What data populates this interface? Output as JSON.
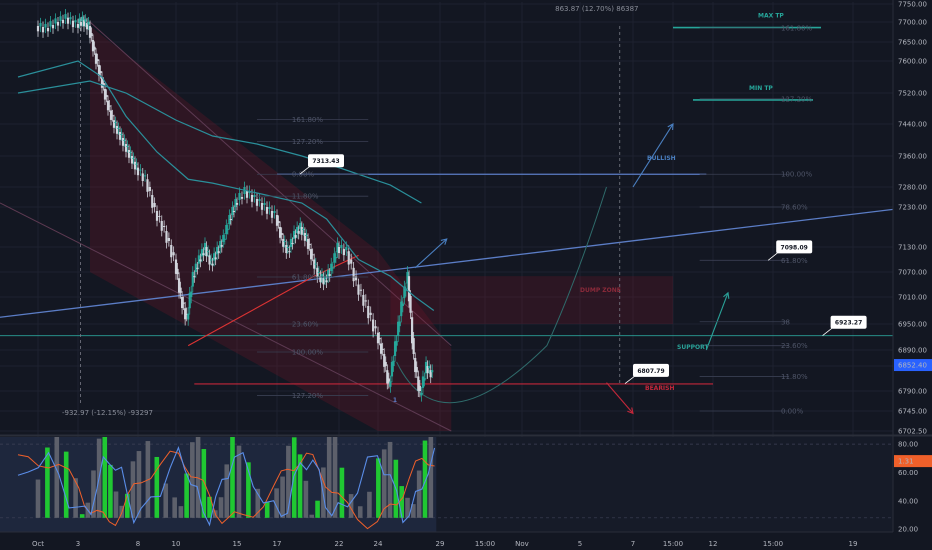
{
  "chart_data": {
    "type": "candlestick",
    "y_axis": {
      "min": 6702.5,
      "max": 7750,
      "ticks": [
        7750,
        7700,
        7650,
        7600,
        7520,
        7440,
        7360,
        7280,
        7230,
        7130,
        7070,
        7010,
        6950,
        6890,
        6850,
        6790,
        6745,
        6702.5
      ],
      "tick_labels": [
        "7750.00",
        "7700.00",
        "7650.00",
        "7600.00",
        "7520.00",
        "7440.00",
        "7360.00",
        "7280.00",
        "7230.00",
        "7130.00",
        "7070.00",
        "7010.00",
        "6950.00",
        "6890.00",
        "6850.00",
        "6790.00",
        "6745.00",
        "6702.50"
      ]
    },
    "x_axis": {
      "ticks": [
        {
          "label": "Oct",
          "day": 1
        },
        {
          "label": "3",
          "day": 3
        },
        {
          "label": "8",
          "day": 8
        },
        {
          "label": "10",
          "day": 10
        },
        {
          "label": "15",
          "day": 15
        },
        {
          "label": "17",
          "day": 17
        },
        {
          "label": "22",
          "day": 22
        },
        {
          "label": "24",
          "day": 24
        },
        {
          "label": "29",
          "day": 29
        },
        {
          "label": "15:00",
          "day": 31
        },
        {
          "label": "Nov",
          "day": 32.5
        },
        {
          "label": "5",
          "day": 36
        },
        {
          "label": "7",
          "day": 38
        },
        {
          "label": "15:00",
          "day": 40
        },
        {
          "label": "12",
          "day": 43
        },
        {
          "label": "15:00",
          "day": 45
        },
        {
          "label": "19",
          "day": 50
        }
      ]
    },
    "last_price": {
      "label": "6852.40",
      "value": 6852.4
    },
    "price_series": [
      [
        1,
        7690
      ],
      [
        1.5,
        7685
      ],
      [
        2,
        7700
      ],
      [
        2.5,
        7712
      ],
      [
        3,
        7695
      ],
      [
        3.5,
        7705
      ],
      [
        4,
        7690
      ],
      [
        4.5,
        7620
      ],
      [
        5,
        7560
      ],
      [
        5.5,
        7500
      ],
      [
        6,
        7450
      ],
      [
        6.5,
        7420
      ],
      [
        7,
        7390
      ],
      [
        7.5,
        7360
      ],
      [
        8,
        7330
      ],
      [
        8.5,
        7300
      ],
      [
        9,
        7220
      ],
      [
        9.5,
        7170
      ],
      [
        10,
        7100
      ],
      [
        10.5,
        7010
      ],
      [
        11,
        6960
      ],
      [
        11.5,
        7060
      ],
      [
        12,
        7100
      ],
      [
        12.5,
        7130
      ],
      [
        13,
        7090
      ],
      [
        13.5,
        7120
      ],
      [
        14,
        7150
      ],
      [
        14.5,
        7200
      ],
      [
        15,
        7240
      ],
      [
        15.5,
        7270
      ],
      [
        16,
        7250
      ],
      [
        16.5,
        7230
      ],
      [
        17,
        7210
      ],
      [
        17.5,
        7150
      ],
      [
        18,
        7120
      ],
      [
        18.5,
        7160
      ],
      [
        19,
        7180
      ],
      [
        19.5,
        7150
      ],
      [
        20,
        7100
      ],
      [
        20.5,
        7060
      ],
      [
        21,
        7050
      ],
      [
        21.5,
        7080
      ],
      [
        22,
        7130
      ],
      [
        22.5,
        7120
      ],
      [
        23,
        7040
      ],
      [
        23.5,
        6990
      ],
      [
        24,
        6930
      ],
      [
        24.5,
        6880
      ],
      [
        25,
        6800
      ],
      [
        25.5,
        6900
      ],
      [
        26,
        6990
      ],
      [
        26.5,
        7060
      ],
      [
        27,
        6870
      ],
      [
        27.5,
        6780
      ],
      [
        28,
        6850
      ],
      [
        28.5,
        6830
      ]
    ],
    "callouts": [
      {
        "label": "7313.43",
        "value": 7313.43
      },
      {
        "label": "7098.09",
        "value": 7098.09
      },
      {
        "label": "6923.27",
        "value": 6923.27
      },
      {
        "label": "6807.79",
        "value": 6807.79
      }
    ],
    "annotations": {
      "measure_up": "863.87 (12.70%) 86387",
      "measure_down": "-932.97 (-12.15%) -93297",
      "max_tp": "MAX TP",
      "min_tp": "MIN TP",
      "bullish": "BULLISH",
      "support": "SUPPORT",
      "bearish": "BEARISH",
      "dump_zone": "DUMP ZONE",
      "wave_one": "1"
    },
    "fib_left": [
      {
        "label": "161.80%",
        "value": 7452
      },
      {
        "label": "127.20%",
        "value": 7396
      },
      {
        "label": "0.00%",
        "value": 7313
      },
      {
        "label": "11.80%",
        "value": 7257
      },
      {
        "label": "61.80%",
        "value": 7058
      },
      {
        "label": "23.60%",
        "value": 6950
      },
      {
        "label": "100.00%",
        "value": 6885
      },
      {
        "label": "127.20%",
        "value": 6780
      }
    ],
    "fib_right": [
      {
        "label": "161.80%",
        "value": 7685
      },
      {
        "label": "127.20%",
        "value": 7505
      },
      {
        "label": "100.00%",
        "value": 7313
      },
      {
        "label": "78.60%",
        "value": 7230
      },
      {
        "label": "61.80%",
        "value": 7098
      },
      {
        "label": "38",
        "value": 6955
      },
      {
        "label": "23.60%",
        "value": 6900
      },
      {
        "label": "11.80%",
        "value": 6825
      },
      {
        "label": "0.00%",
        "value": 6745
      }
    ],
    "oscillator": {
      "ticks": [
        80,
        60,
        40,
        20
      ],
      "tick_labels": [
        "80.00",
        "60.00",
        "40.00",
        "20.00"
      ],
      "last_label": "1.31"
    }
  }
}
